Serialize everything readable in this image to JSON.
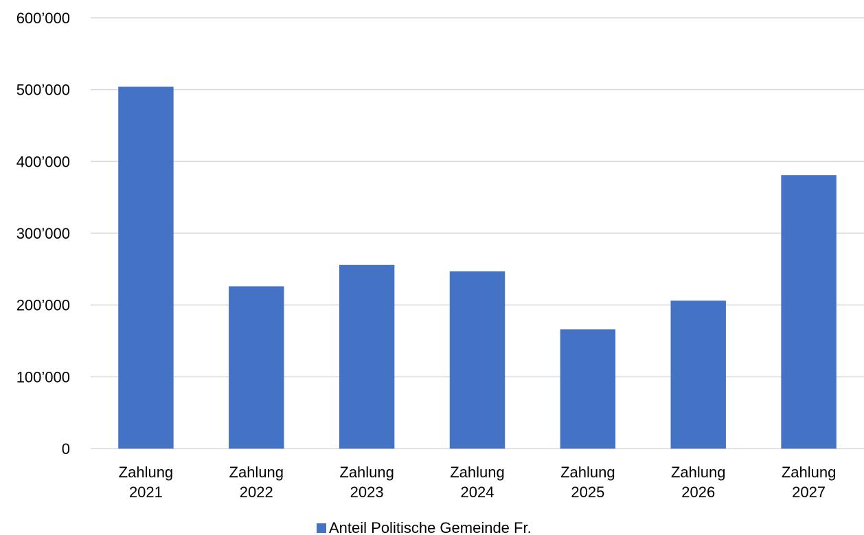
{
  "chart_data": {
    "type": "bar",
    "categories": [
      [
        "Zahlung",
        "2021"
      ],
      [
        "Zahlung",
        "2022"
      ],
      [
        "Zahlung",
        "2023"
      ],
      [
        "Zahlung",
        "2024"
      ],
      [
        "Zahlung",
        "2025"
      ],
      [
        "Zahlung",
        "2026"
      ],
      [
        "Zahlung",
        "2027"
      ]
    ],
    "series": [
      {
        "name": "Anteil Politische Gemeinde Fr.",
        "color": "#4472c4",
        "values": [
          504000,
          226000,
          256000,
          247000,
          166000,
          206000,
          381000
        ]
      }
    ],
    "ylim": [
      0,
      600000
    ],
    "yticks": [
      0,
      100000,
      200000,
      300000,
      400000,
      500000,
      600000
    ],
    "ytick_labels": [
      "0",
      "100’000",
      "200’000",
      "300’000",
      "400’000",
      "500’000",
      "600’000"
    ],
    "grid": true,
    "legend_position": "bottom-center"
  }
}
